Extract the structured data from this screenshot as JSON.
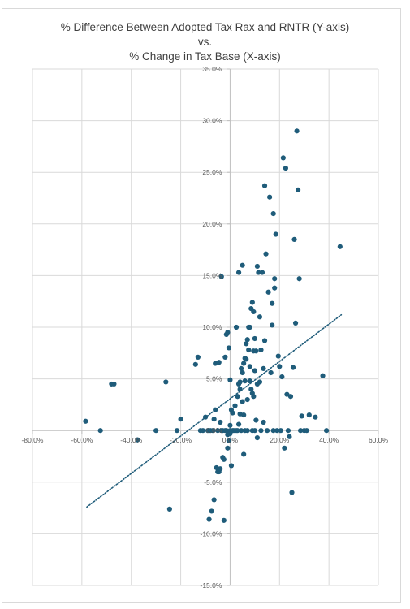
{
  "chart_data": {
    "type": "scatter",
    "title_lines": [
      "% Difference Between Adopted Tax Rax and RNTR (Y-axis)",
      "vs.",
      "% Change in Tax Base (X-axis)"
    ],
    "xlabel": "",
    "ylabel": "",
    "xlim": [
      -0.8,
      0.6
    ],
    "ylim": [
      -0.15,
      0.35
    ],
    "x_ticks": [
      -0.8,
      -0.6,
      -0.4,
      -0.2,
      0.0,
      0.2,
      0.4,
      0.6
    ],
    "y_ticks": [
      -0.15,
      -0.1,
      -0.05,
      0.0,
      0.05,
      0.1,
      0.15,
      0.2,
      0.25,
      0.3,
      0.35
    ],
    "x_tick_labels": [
      "-80.0%",
      "-60.0%",
      "-40.0%",
      "-20.0%",
      "0.0%",
      "20.0%",
      "40.0%",
      "60.0%"
    ],
    "y_tick_labels": [
      "-15.0%",
      "-10.0%",
      "-5.0%",
      "0.0%",
      "5.0%",
      "10.0%",
      "15.0%",
      "20.0%",
      "25.0%",
      "30.0%",
      "35.0%"
    ],
    "grid": true,
    "legend": "none",
    "marker_color": "#1f5c7a",
    "trendline": {
      "type": "linear",
      "style": "dotted",
      "color": "#1f5c7a",
      "x_range": [
        -0.58,
        0.45
      ],
      "y_range": [
        -0.074,
        0.112
      ]
    },
    "series": [
      {
        "points": [
          [
            -0.585,
            0.009
          ],
          [
            -0.525,
            0.0
          ],
          [
            -0.48,
            0.045
          ],
          [
            -0.47,
            0.045
          ],
          [
            -0.375,
            -0.009
          ],
          [
            -0.3,
            0.0
          ],
          [
            -0.26,
            0.047
          ],
          [
            -0.245,
            -0.076
          ],
          [
            -0.215,
            0.0
          ],
          [
            -0.2,
            0.011
          ],
          [
            -0.14,
            0.064
          ],
          [
            -0.13,
            0.071
          ],
          [
            -0.12,
            0.0
          ],
          [
            -0.11,
            0.0
          ],
          [
            -0.1,
            0.013
          ],
          [
            -0.09,
            0.0
          ],
          [
            -0.085,
            -0.086
          ],
          [
            -0.08,
            0.0
          ],
          [
            -0.075,
            -0.078
          ],
          [
            -0.07,
            0.0
          ],
          [
            -0.065,
            -0.067
          ],
          [
            -0.065,
            0.011
          ],
          [
            -0.06,
            0.02
          ],
          [
            -0.06,
            0.065
          ],
          [
            -0.055,
            -0.036
          ],
          [
            -0.05,
            0.0
          ],
          [
            -0.05,
            -0.04
          ],
          [
            -0.045,
            0.066
          ],
          [
            -0.045,
            -0.04
          ],
          [
            -0.04,
            0.008
          ],
          [
            -0.04,
            -0.037
          ],
          [
            -0.035,
            0.149
          ],
          [
            -0.035,
            0.0
          ],
          [
            -0.03,
            0.0
          ],
          [
            -0.03,
            -0.026
          ],
          [
            -0.025,
            -0.087
          ],
          [
            -0.025,
            -0.028
          ],
          [
            -0.02,
            0.071
          ],
          [
            -0.02,
            0.0
          ],
          [
            -0.015,
            0.093
          ],
          [
            -0.015,
            0.0
          ],
          [
            -0.01,
            0.095
          ],
          [
            -0.01,
            -0.004
          ],
          [
            -0.01,
            -0.017
          ],
          [
            -0.005,
            0.08
          ],
          [
            -0.005,
            -0.01
          ],
          [
            0.0,
            0.0
          ],
          [
            0.0,
            0.049
          ],
          [
            0.0,
            0.005
          ],
          [
            0.0,
            -0.003
          ],
          [
            0.005,
            -0.034
          ],
          [
            0.005,
            0.02
          ],
          [
            0.01,
            0.017
          ],
          [
            0.01,
            0.0
          ],
          [
            0.015,
            0.0
          ],
          [
            0.02,
            0.024
          ],
          [
            0.025,
            0.1
          ],
          [
            0.025,
            0.0
          ],
          [
            0.03,
            0.033
          ],
          [
            0.03,
            0.0
          ],
          [
            0.035,
            0.153
          ],
          [
            0.035,
            0.045
          ],
          [
            0.035,
            0.006
          ],
          [
            0.04,
            0.047
          ],
          [
            0.04,
            0.04
          ],
          [
            0.04,
            0.016
          ],
          [
            0.045,
            0.06
          ],
          [
            0.045,
            0.0
          ],
          [
            0.05,
            0.16
          ],
          [
            0.05,
            0.056
          ],
          [
            0.05,
            0.028
          ],
          [
            0.055,
            0.065
          ],
          [
            0.055,
            -0.023
          ],
          [
            0.055,
            0.015
          ],
          [
            0.06,
            0.07
          ],
          [
            0.06,
            0.048
          ],
          [
            0.06,
            0.0
          ],
          [
            0.065,
            0.084
          ],
          [
            0.065,
            0.069
          ],
          [
            0.07,
            0.088
          ],
          [
            0.07,
            0.03
          ],
          [
            0.07,
            0.0
          ],
          [
            0.075,
            0.1
          ],
          [
            0.075,
            0.078
          ],
          [
            0.08,
            0.1
          ],
          [
            0.08,
            0.062
          ],
          [
            0.08,
            0.048
          ],
          [
            0.085,
            0.118
          ],
          [
            0.085,
            0.04
          ],
          [
            0.09,
            0.124
          ],
          [
            0.09,
            0.036
          ],
          [
            0.09,
            0.0
          ],
          [
            0.095,
            0.115
          ],
          [
            0.095,
            0.077
          ],
          [
            0.095,
            0.033
          ],
          [
            0.1,
            0.089
          ],
          [
            0.1,
            0.058
          ],
          [
            0.1,
            0.0
          ],
          [
            0.105,
            0.077
          ],
          [
            0.105,
            0.01
          ],
          [
            0.11,
            0.159
          ],
          [
            0.11,
            0.045
          ],
          [
            0.11,
            -0.007
          ],
          [
            0.115,
            0.153
          ],
          [
            0.12,
            0.11
          ],
          [
            0.12,
            0.047
          ],
          [
            0.125,
            0.078
          ],
          [
            0.125,
            0.0
          ],
          [
            0.13,
            0.153
          ],
          [
            0.135,
            0.06
          ],
          [
            0.135,
            0.008
          ],
          [
            0.14,
            0.237
          ],
          [
            0.14,
            0.087
          ],
          [
            0.145,
            0.171
          ],
          [
            0.15,
            0.0
          ],
          [
            0.155,
            0.134
          ],
          [
            0.16,
            0.226
          ],
          [
            0.165,
            0.056
          ],
          [
            0.17,
            0.123
          ],
          [
            0.17,
            0.102
          ],
          [
            0.175,
            0.0
          ],
          [
            0.175,
            0.21
          ],
          [
            0.18,
            0.138
          ],
          [
            0.18,
            0.147
          ],
          [
            0.185,
            0.19
          ],
          [
            0.19,
            0.0
          ],
          [
            0.195,
            0.072
          ],
          [
            0.2,
            0.062
          ],
          [
            0.205,
            0.0
          ],
          [
            0.21,
            0.052
          ],
          [
            0.215,
            0.264
          ],
          [
            0.22,
            -0.017
          ],
          [
            0.225,
            0.254
          ],
          [
            0.23,
            0.035
          ],
          [
            0.235,
            0.0
          ],
          [
            0.24,
            -0.006
          ],
          [
            0.245,
            0.033
          ],
          [
            0.25,
            -0.06
          ],
          [
            0.255,
            0.061
          ],
          [
            0.26,
            0.185
          ],
          [
            0.265,
            0.104
          ],
          [
            0.27,
            0.29
          ],
          [
            0.275,
            0.233
          ],
          [
            0.28,
            0.147
          ],
          [
            0.285,
            0.0
          ],
          [
            0.29,
            0.014
          ],
          [
            0.3,
            0.0
          ],
          [
            0.31,
            0.0
          ],
          [
            0.32,
            0.015
          ],
          [
            0.345,
            0.013
          ],
          [
            0.375,
            0.053
          ],
          [
            0.39,
            0.0
          ],
          [
            0.445,
            0.178
          ]
        ]
      }
    ]
  }
}
